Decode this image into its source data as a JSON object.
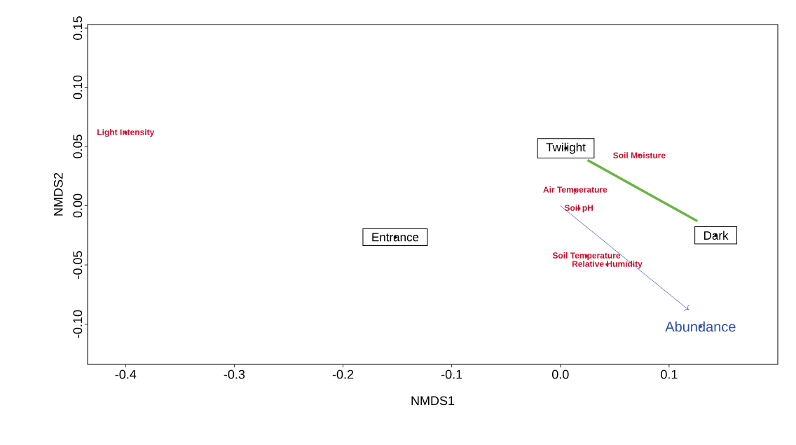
{
  "chart_data": {
    "type": "scatter",
    "xlabel": "NMDS1",
    "ylabel": "NMDS2",
    "xlim": [
      -0.435,
      0.2
    ],
    "ylim": [
      -0.134,
      0.153
    ],
    "xticks": [
      {
        "value": -0.4,
        "label": "-0.4"
      },
      {
        "value": -0.3,
        "label": "-0.3"
      },
      {
        "value": -0.2,
        "label": "-0.2"
      },
      {
        "value": -0.1,
        "label": "-0.1"
      },
      {
        "value": 0,
        "label": "0.0"
      },
      {
        "value": 0.1,
        "label": "0.1"
      }
    ],
    "yticks": [
      {
        "value": -0.1,
        "label": "-0.10"
      },
      {
        "value": -0.05,
        "label": "-0.05"
      },
      {
        "value": 0,
        "label": "0.00"
      },
      {
        "value": 0.05,
        "label": "0.05"
      },
      {
        "value": 0.1,
        "label": "0.10"
      },
      {
        "value": 0.15,
        "label": "0.15"
      }
    ],
    "series": [
      {
        "type": "line",
        "color": "#6ab446",
        "x": [
          0.025,
          0.126
        ],
        "values": [
          0.0385,
          -0.013
        ]
      },
      {
        "type": "line",
        "color": "#3a5fb8",
        "x": [
          0,
          0.118
        ],
        "values": [
          0,
          -0.088
        ]
      },
      {
        "color": "#000000",
        "x": [
          0.005,
          -0.152,
          0.143
        ],
        "values": [
          0.0485,
          -0.0266,
          -0.025
        ],
        "value_labels": [
          "Twilight",
          "Entrance",
          "Dark"
        ]
      },
      {
        "color": "#c8102e",
        "x": [
          -0.4,
          0.0726,
          0.0136,
          0.017,
          0.024,
          0.043
        ],
        "values": [
          0.0615,
          0.0426,
          0.013,
          -0.0024,
          -0.0426,
          -0.0497
        ],
        "value_labels": [
          "Light Intensity",
          "Soil Moisture",
          "Air Temperature",
          "Soil pH",
          "Soil Temperature",
          "Relative Humidity"
        ]
      },
      {
        "color": "#2a4fa8",
        "x": [
          0.129
        ],
        "values": [
          -0.102
        ],
        "value_labels": [
          "Abundance"
        ]
      }
    ]
  }
}
